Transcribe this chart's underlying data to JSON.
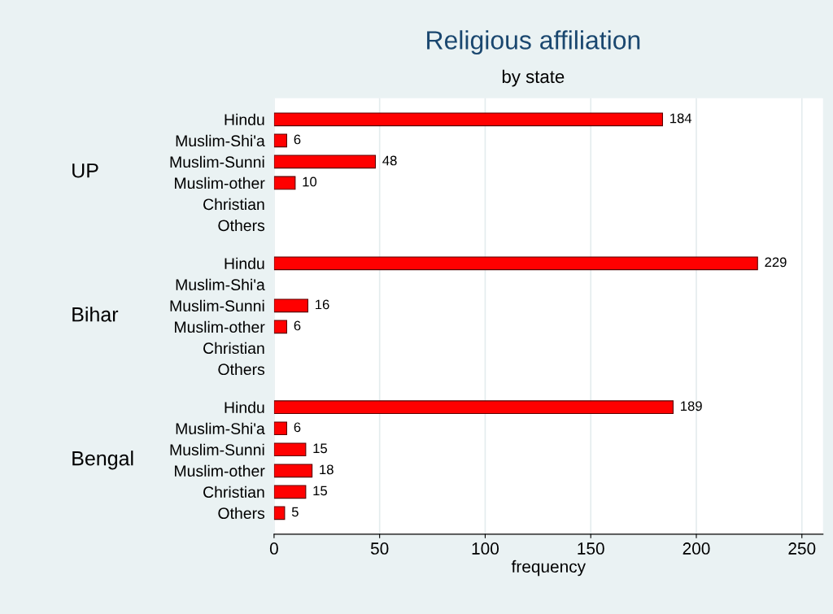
{
  "chart_data": {
    "type": "bar",
    "orientation": "horizontal",
    "title": "Religious affiliation",
    "subtitle": "by state",
    "xlabel": "frequency",
    "categories": [
      "Hindu",
      "Muslim-Shi'a",
      "Muslim-Sunni",
      "Muslim-other",
      "Christian",
      "Others",
      "Hindu",
      "Muslim-Shi'a",
      "Muslim-Sunni",
      "Muslim-other",
      "Christian",
      "Others",
      "Hindu",
      "Muslim-Shi'a",
      "Muslim-Sunni",
      "Muslim-other",
      "Christian",
      "Others"
    ],
    "values": [
      184,
      6,
      48,
      10,
      null,
      null,
      229,
      null,
      16,
      6,
      null,
      null,
      189,
      6,
      15,
      18,
      15,
      5
    ],
    "color": "#ff0000",
    "annotations": [
      "UP",
      "Bihar",
      "Bengal"
    ],
    "xlim": [
      0,
      260
    ],
    "xticks": [
      0,
      50,
      100,
      150,
      200,
      250
    ],
    "grid": "x",
    "data_labels": true
  }
}
